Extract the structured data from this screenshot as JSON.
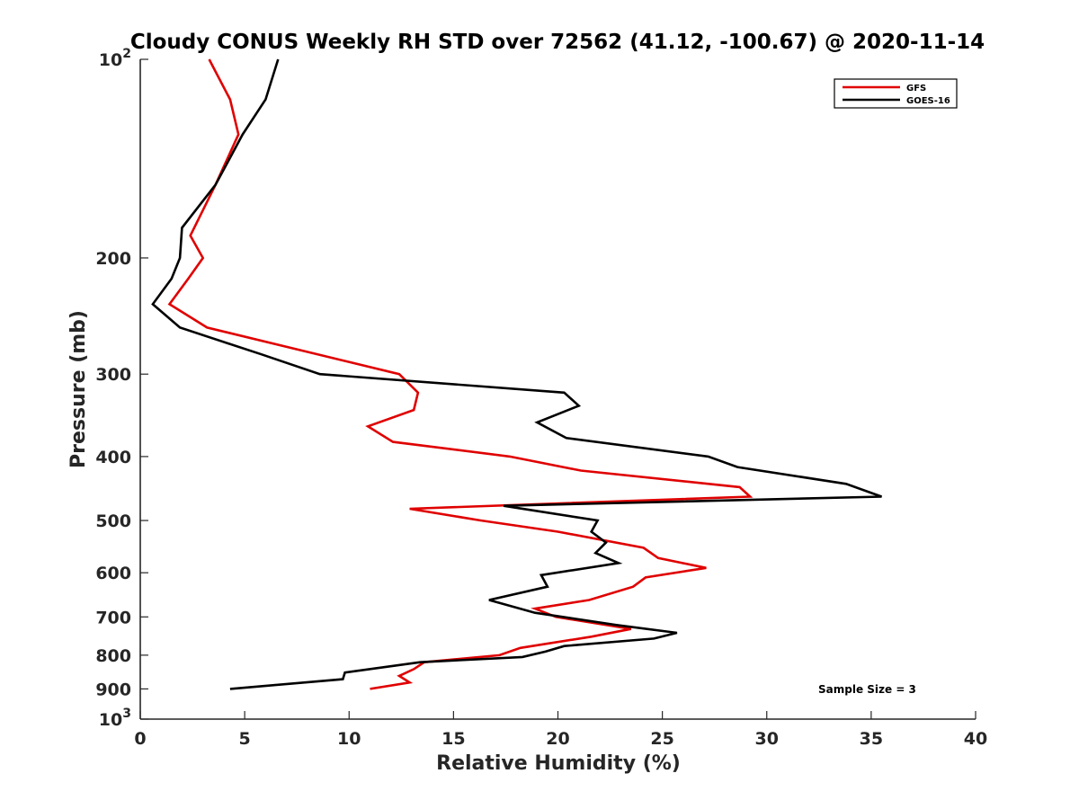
{
  "chart_data": {
    "type": "line",
    "title": "Cloudy CONUS Weekly RH STD over 72562 (41.12, -100.67) @ 2020-11-14",
    "xlabel": "Relative Humidity (%)",
    "ylabel": "Pressure (mb)",
    "xlim": [
      0,
      40
    ],
    "ylim": [
      100,
      1000
    ],
    "yscale": "log",
    "y_reversed": true,
    "x_ticks": [
      "0",
      "5",
      "10",
      "15",
      "20",
      "25",
      "30",
      "35",
      "40"
    ],
    "y_ticks": [
      {
        "value": 100,
        "label": "10",
        "exp": "2"
      },
      {
        "value": 200,
        "label": "200"
      },
      {
        "value": 300,
        "label": "300"
      },
      {
        "value": 400,
        "label": "400"
      },
      {
        "value": 500,
        "label": "500"
      },
      {
        "value": 600,
        "label": "600"
      },
      {
        "value": 700,
        "label": "700"
      },
      {
        "value": 800,
        "label": "800"
      },
      {
        "value": 900,
        "label": "900"
      },
      {
        "value": 1000,
        "label": "10",
        "exp": "3"
      }
    ],
    "grid": false,
    "legend_position": "top-right",
    "series": [
      {
        "name": "GFS",
        "color": "#e00000",
        "x": [
          3.3,
          4.3,
          4.7,
          3.6,
          2.4,
          3.0,
          2.3,
          1.4,
          3.2,
          12.4,
          13.3,
          13.1,
          10.9,
          12.1,
          17.7,
          21.1,
          28.7,
          29.2,
          12.9,
          16.3,
          20.0,
          24.1,
          24.8,
          27.1,
          24.2,
          23.6,
          21.5,
          18.9,
          19.9,
          23.5,
          21.6,
          18.2,
          17.2,
          13.6,
          13.1,
          12.4,
          12.9,
          11.0
        ],
        "y": [
          100,
          115,
          130,
          155,
          185,
          200,
          215,
          235,
          255,
          300,
          320,
          340,
          360,
          380,
          400,
          420,
          445,
          460,
          480,
          500,
          520,
          550,
          570,
          590,
          610,
          630,
          660,
          680,
          700,
          730,
          750,
          780,
          800,
          820,
          840,
          860,
          880,
          900
        ]
      },
      {
        "name": "GOES-16",
        "color": "#000000",
        "x": [
          6.6,
          6.0,
          4.9,
          3.6,
          2.0,
          1.9,
          1.5,
          0.6,
          1.9,
          5.8,
          8.6,
          20.3,
          21.0,
          19.0,
          20.4,
          27.2,
          28.6,
          33.8,
          35.5,
          17.4,
          21.9,
          21.6,
          22.3,
          21.8,
          22.9,
          19.2,
          19.5,
          16.7,
          18.9,
          22.8,
          25.7,
          24.6,
          20.3,
          19.4,
          18.3,
          13.4,
          9.8,
          9.7,
          4.3
        ],
        "y": [
          100,
          115,
          130,
          155,
          180,
          200,
          215,
          235,
          255,
          280,
          300,
          320,
          335,
          355,
          375,
          400,
          415,
          440,
          460,
          475,
          500,
          520,
          540,
          560,
          580,
          605,
          630,
          660,
          690,
          720,
          740,
          755,
          775,
          790,
          805,
          820,
          850,
          870,
          900
        ]
      }
    ],
    "annotation": "Sample Size = 3"
  }
}
